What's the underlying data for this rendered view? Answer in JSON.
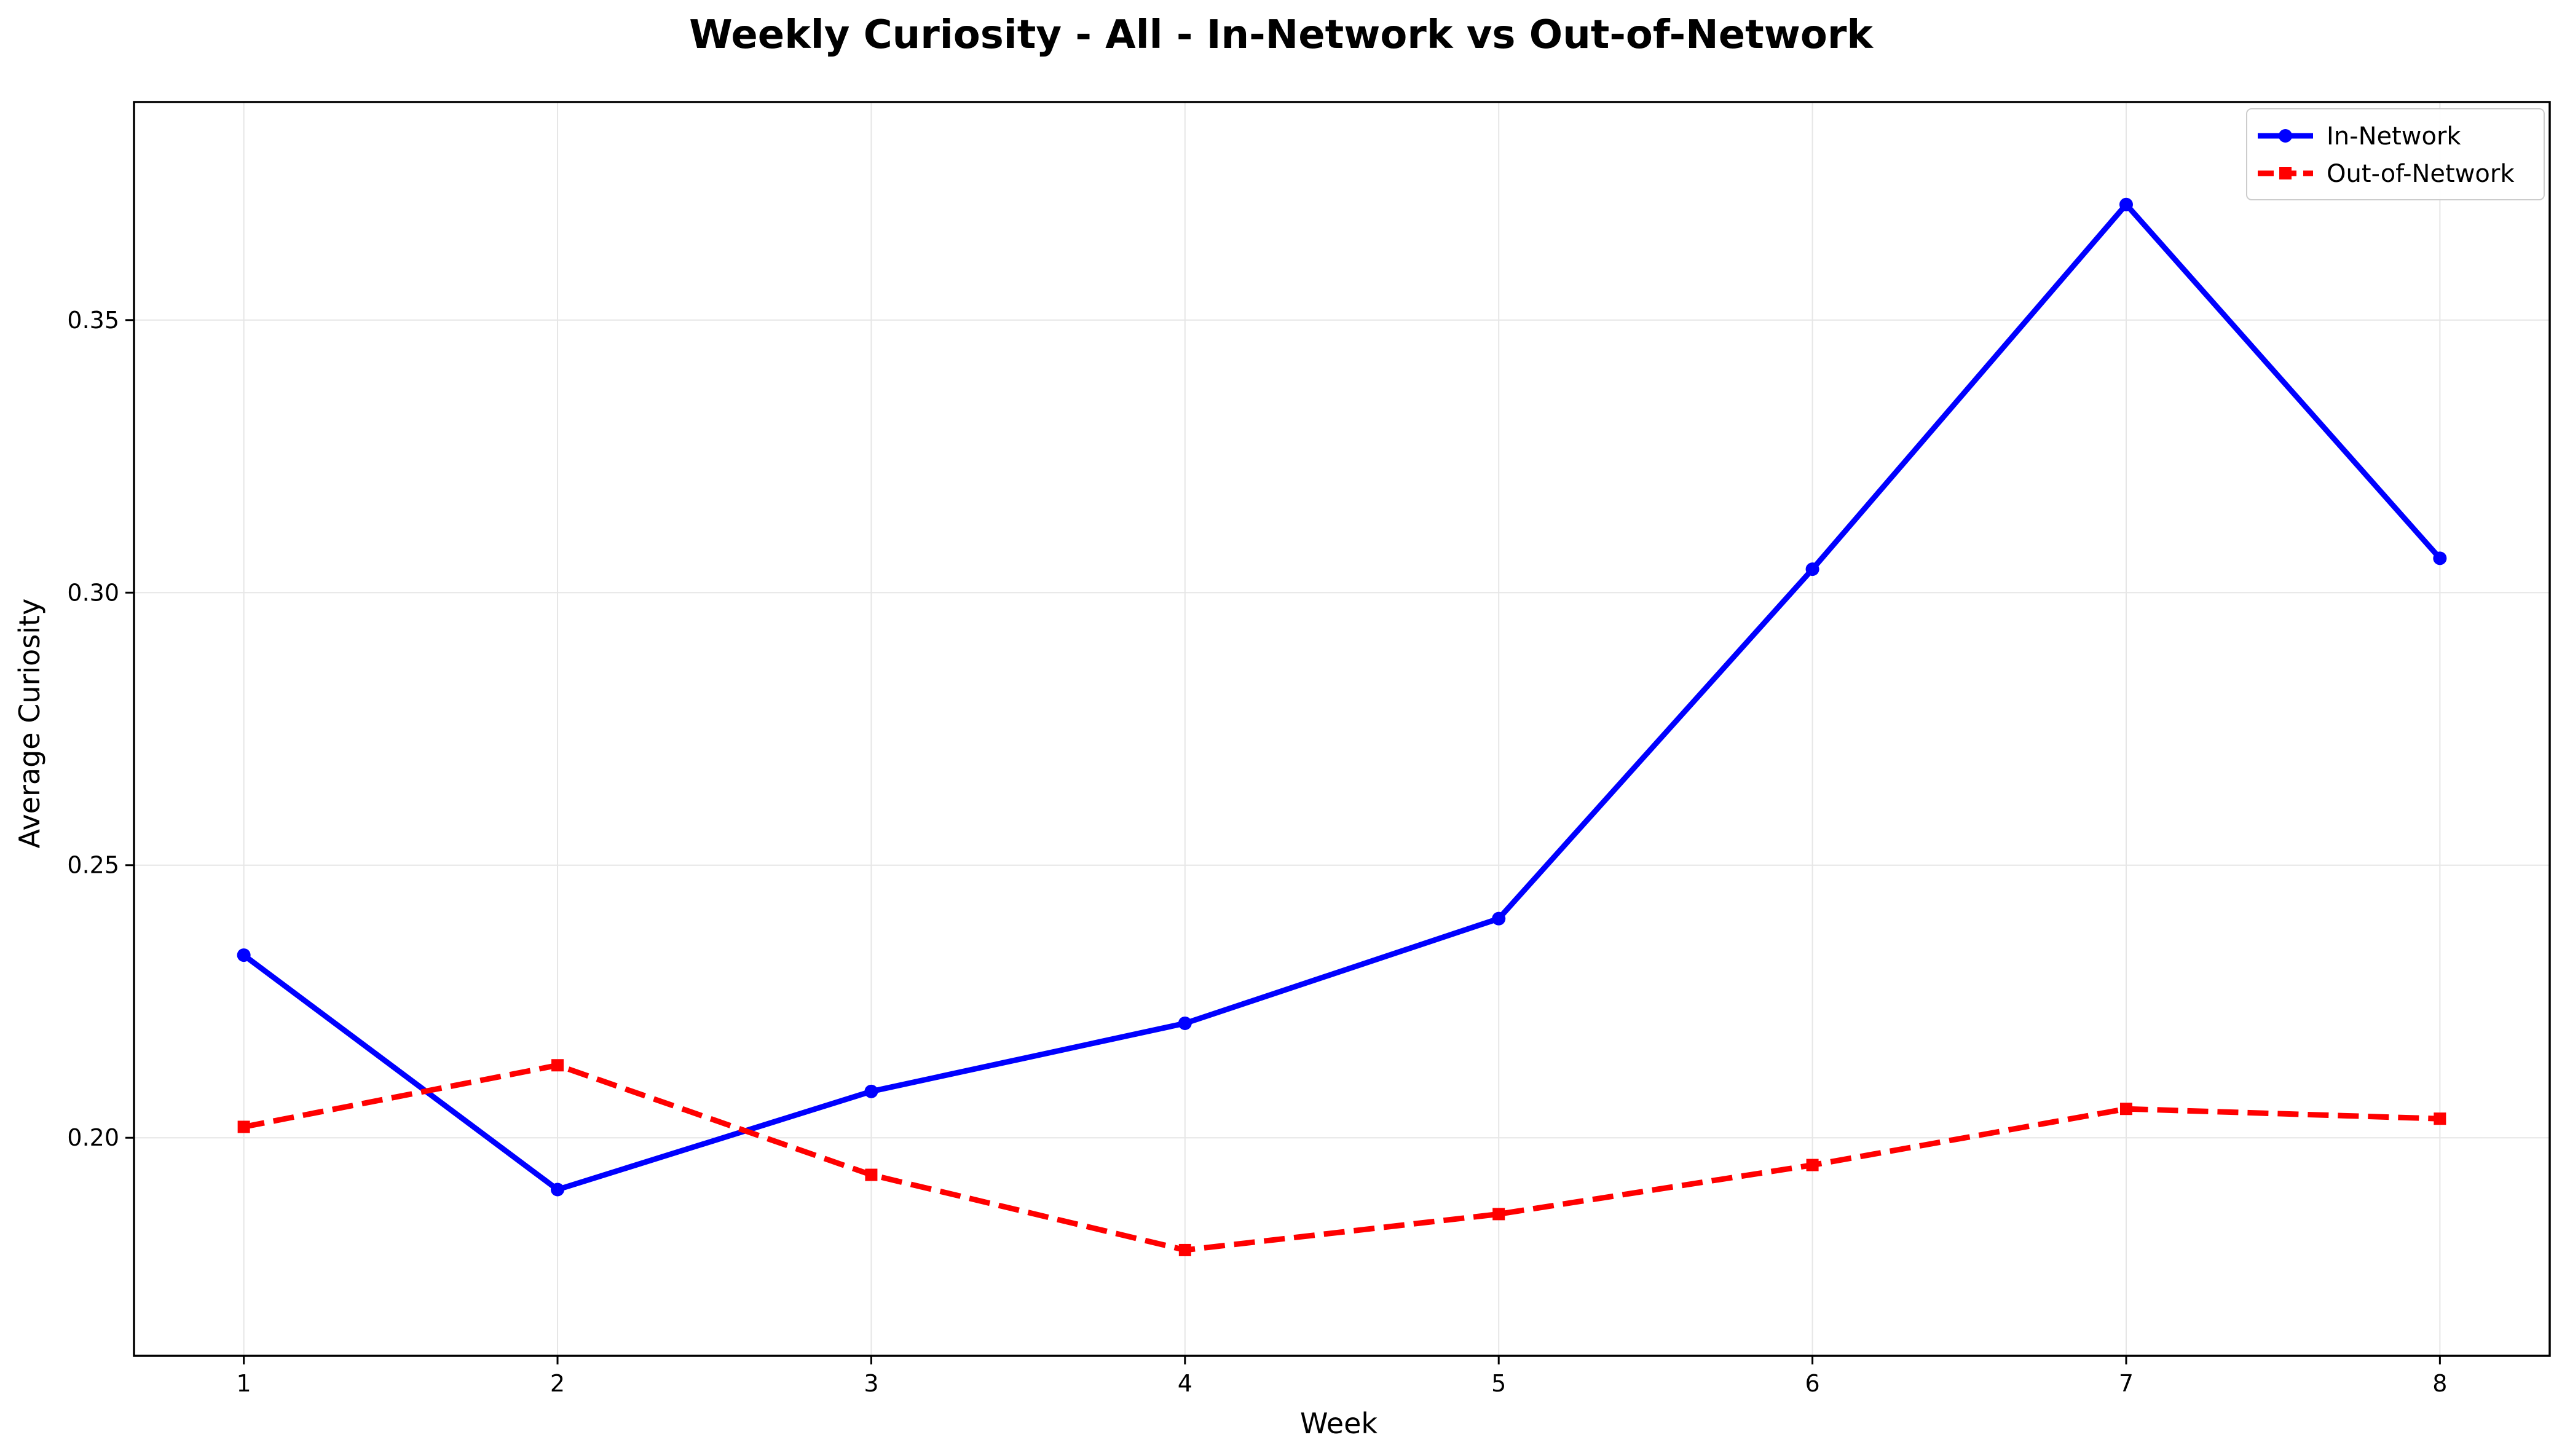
{
  "chart_data": {
    "type": "line",
    "title": "Weekly Curiosity - All - In-Network vs Out-of-Network",
    "xlabel": "Week",
    "ylabel": "Average Curiosity",
    "x": [
      1,
      2,
      3,
      4,
      5,
      6,
      7,
      8
    ],
    "xlim": [
      0.65,
      8.35
    ],
    "ylim": [
      0.16,
      0.39
    ],
    "xticks": [
      "1",
      "2",
      "3",
      "4",
      "5",
      "6",
      "7",
      "8"
    ],
    "yticks": [
      "0.20",
      "0.25",
      "0.30",
      "0.35"
    ],
    "ytick_values": [
      0.2,
      0.25,
      0.3,
      0.35
    ],
    "grid": true,
    "legend_position": "top-right",
    "series": [
      {
        "name": "In-Network",
        "color": "#0000ff",
        "line_style": "solid",
        "marker": "circle",
        "values": [
          0.2335,
          0.1905,
          0.2085,
          0.221,
          0.2402,
          0.3043,
          0.3712,
          0.3063
        ]
      },
      {
        "name": "Out-of-Network",
        "color": "#ff0000",
        "line_style": "dashed",
        "marker": "square",
        "values": [
          0.202,
          0.2133,
          0.1932,
          0.1794,
          0.186,
          0.195,
          0.2053,
          0.2035
        ]
      }
    ]
  }
}
